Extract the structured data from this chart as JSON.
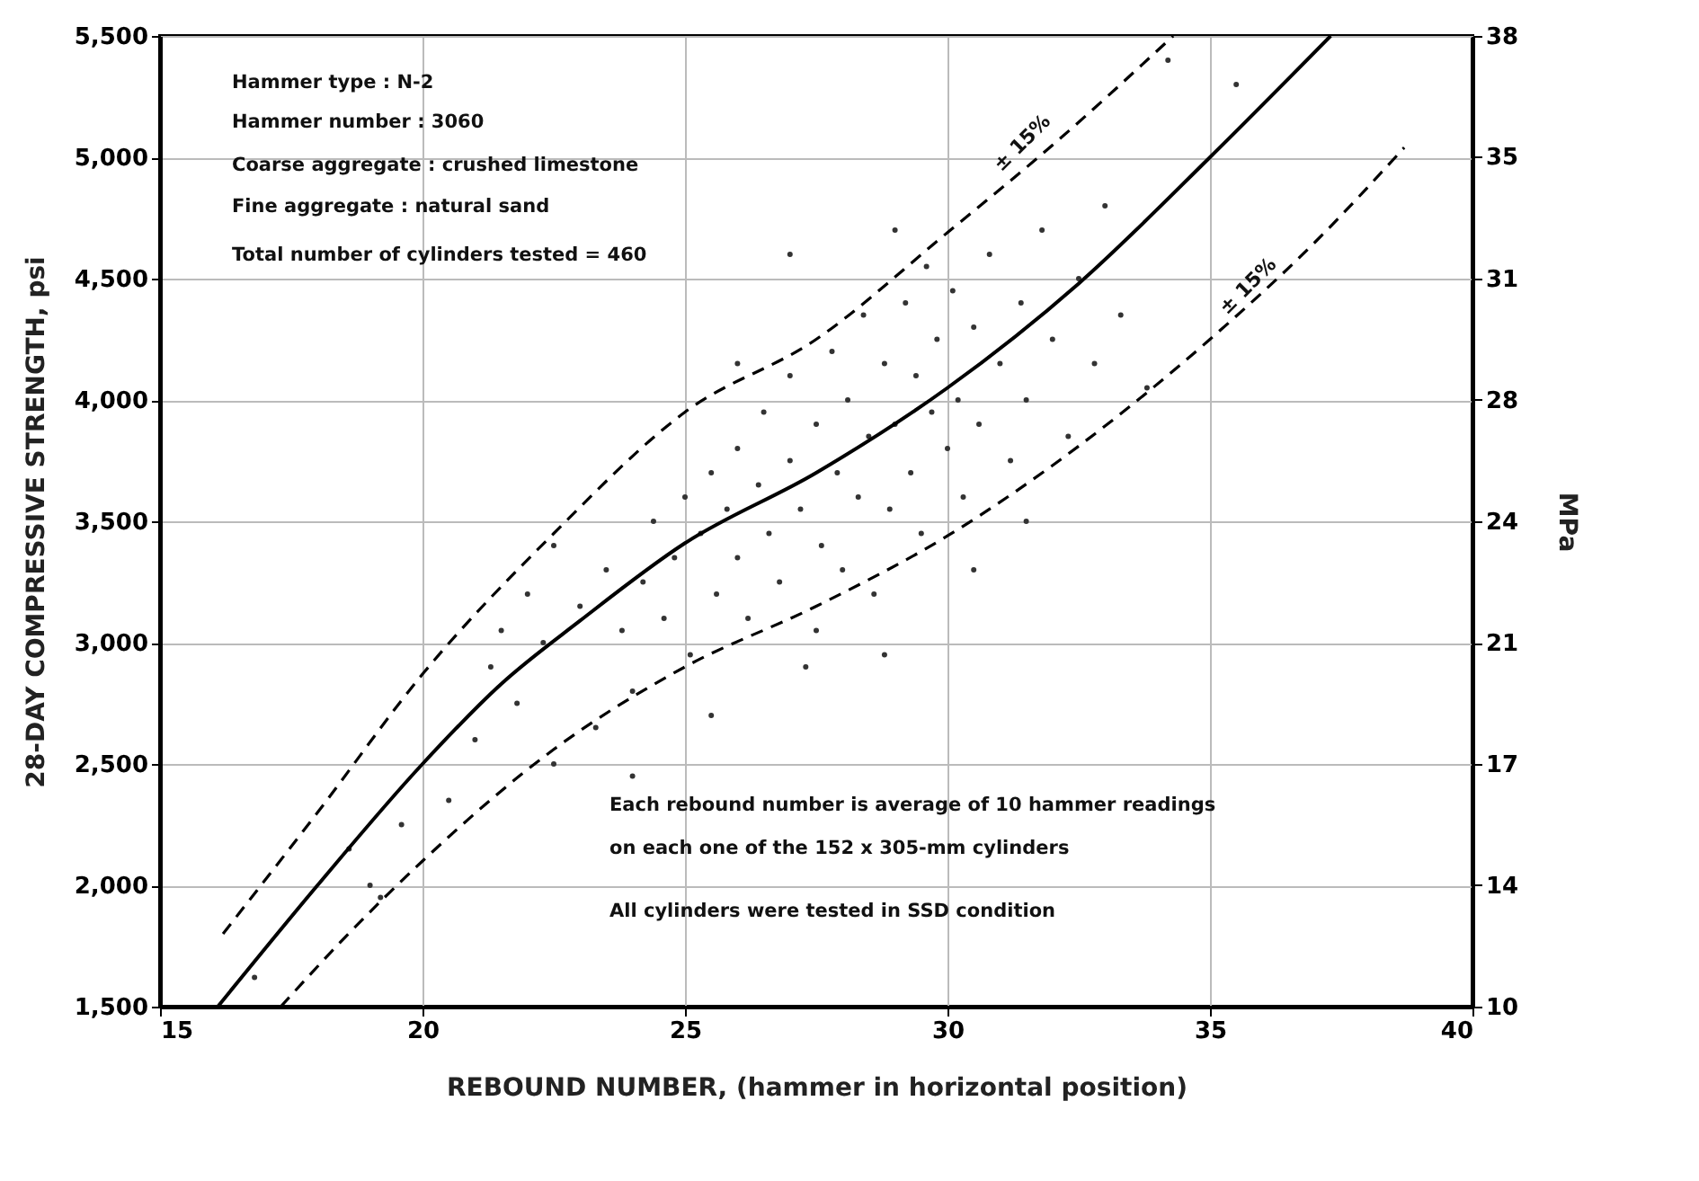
{
  "chart_data": {
    "type": "scatter",
    "xlabel": "REBOUND NUMBER, (hammer in horizontal position)",
    "ylabel": "28-DAY COMPRESSIVE STRENGTH, psi",
    "y2label": "MPa",
    "xlim": [
      15,
      40
    ],
    "xticks": [
      15,
      20,
      25,
      30,
      35,
      40
    ],
    "ylim": [
      1500,
      5500
    ],
    "yticks": [
      {
        "value": 1500,
        "label": "1,500"
      },
      {
        "value": 2000,
        "label": "2,000"
      },
      {
        "value": 2500,
        "label": "2,500"
      },
      {
        "value": 3000,
        "label": "3,000"
      },
      {
        "value": 3500,
        "label": "3,500"
      },
      {
        "value": 4000,
        "label": "4,000"
      },
      {
        "value": 4500,
        "label": "4,500"
      },
      {
        "value": 5000,
        "label": "5,000"
      },
      {
        "value": 5500,
        "label": "5,500"
      }
    ],
    "y2lim": [
      10.34,
      37.92
    ],
    "y2ticks": [
      {
        "value": 10.34,
        "label": "10"
      },
      {
        "value": 13.79,
        "label": "14"
      },
      {
        "value": 17.24,
        "label": "17"
      },
      {
        "value": 20.68,
        "label": "21"
      },
      {
        "value": 24.13,
        "label": "24"
      },
      {
        "value": 27.58,
        "label": "28"
      },
      {
        "value": 31.03,
        "label": "31"
      },
      {
        "value": 34.5,
        "label": "35"
      },
      {
        "value": 37.92,
        "label": "38"
      }
    ],
    "grid": true,
    "series": [
      {
        "color": "#333333",
        "x": [
          16.8,
          18.6,
          19.0,
          19.2,
          19.6,
          20.5,
          21.0,
          21.3,
          21.5,
          21.8,
          22.0,
          22.3,
          22.5,
          23.0,
          23.3,
          23.5,
          23.8,
          24.0,
          24.2,
          24.4,
          24.6,
          24.8,
          25.0,
          25.1,
          25.3,
          25.5,
          25.6,
          25.8,
          26.0,
          26.0,
          26.2,
          26.4,
          26.5,
          26.6,
          26.8,
          27.0,
          27.0,
          27.2,
          27.3,
          27.5,
          27.6,
          27.8,
          27.9,
          28.0,
          28.1,
          28.3,
          28.4,
          28.5,
          28.6,
          28.8,
          28.9,
          29.0,
          29.0,
          29.2,
          29.3,
          29.4,
          29.5,
          29.6,
          29.7,
          29.8,
          30.0,
          30.1,
          30.2,
          30.3,
          30.5,
          30.6,
          30.8,
          31.0,
          31.2,
          31.4,
          31.5,
          31.8,
          32.0,
          32.3,
          32.5,
          32.8,
          33.0,
          33.3,
          33.8,
          34.2,
          35.5,
          27.5,
          28.8,
          25.5,
          24.0,
          30.5,
          31.5,
          22.5,
          27.0,
          26.0
        ],
        "values": [
          1620,
          2150,
          2000,
          1950,
          2250,
          2350,
          2600,
          2900,
          3050,
          2750,
          3200,
          3000,
          2500,
          3150,
          2650,
          3300,
          3050,
          2800,
          3250,
          3500,
          3100,
          3350,
          3600,
          2950,
          3450,
          3700,
          3200,
          3550,
          3800,
          3350,
          3100,
          3650,
          3950,
          3450,
          3250,
          3750,
          4100,
          3550,
          2900,
          3900,
          3400,
          4200,
          3700,
          3300,
          4000,
          3600,
          4350,
          3850,
          3200,
          4150,
          3550,
          4700,
          3900,
          4400,
          3700,
          4100,
          3450,
          4550,
          3950,
          4250,
          3800,
          4450,
          4000,
          3600,
          4300,
          3900,
          4600,
          4150,
          3750,
          4400,
          4000,
          4700,
          4250,
          3850,
          4500,
          4150,
          4800,
          4350,
          4050,
          5400,
          5300,
          3050,
          2950,
          2700,
          2450,
          3300,
          3500,
          3400,
          4600,
          4150
        ]
      },
      {
        "type": "line",
        "color": "#000000",
        "line_style": "solid",
        "x": [
          16.1,
          18.0,
          20.0,
          21.5,
          23.0,
          25.0,
          27.5,
          30.0,
          32.5,
          35.0,
          37.3
        ],
        "values": [
          1500,
          2000,
          2500,
          2830,
          3090,
          3410,
          3700,
          4050,
          4480,
          5000,
          5500
        ]
      },
      {
        "type": "line",
        "color": "#000000",
        "line_style": "dashed",
        "x": [
          16.2,
          18.0,
          20.0,
          22.5,
          25.0,
          27.5,
          30.0,
          32.0,
          34.3
        ],
        "values": [
          1800,
          2300,
          2870,
          3450,
          3950,
          4250,
          4690,
          5050,
          5500
        ]
      },
      {
        "type": "line",
        "color": "#000000",
        "line_style": "dashed",
        "x": [
          17.3,
          18.5,
          20.0,
          22.5,
          25.0,
          27.5,
          30.0,
          32.5,
          35.0,
          37.0,
          38.7
        ],
        "values": [
          1500,
          1780,
          2100,
          2560,
          2900,
          3150,
          3440,
          3810,
          4250,
          4650,
          5040
        ]
      }
    ],
    "annotations": [
      "Hammer type : N-2",
      "Hammer number : 3060",
      "Coarse aggregate : crushed limestone",
      "Fine aggregate : natural sand",
      "Total number of cylinders tested = 460",
      "Each rebound number is average of 10 hammer readings",
      "on each one of the 152 x 305-mm cylinders",
      "All cylinders were tested in SSD condition",
      {
        "text": "± 15%",
        "x": 31.6,
        "y": 5020
      },
      {
        "text": "± 15%",
        "x": 35.9,
        "y": 4430
      }
    ]
  }
}
